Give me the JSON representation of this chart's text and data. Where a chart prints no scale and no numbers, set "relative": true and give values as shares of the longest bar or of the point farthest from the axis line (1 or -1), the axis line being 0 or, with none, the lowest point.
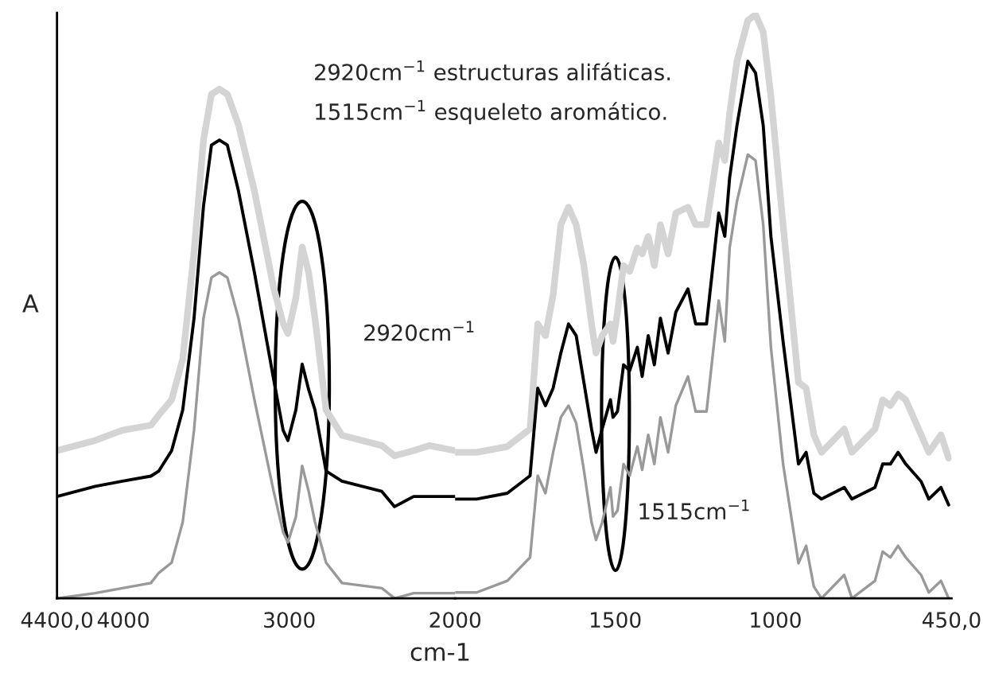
{
  "chart_data": [
    {
      "type": "line",
      "relative": true,
      "ylabel": "A",
      "annotations": [
        "2920cm$^{−1}$ estructuras alifáticas.",
        "1515cm$^{−1}$ esqueleto aromático.",
        "2920cm$^{−1}$"
      ],
      "xlim": [
        4400,
        2000
      ],
      "xticks": [
        {
          "value": 4400,
          "label": "4400,0"
        },
        4000,
        3000,
        2000
      ],
      "x": [
        4400,
        4170,
        4006,
        3834,
        3786,
        3709,
        3642,
        3574,
        3517,
        3469,
        3421,
        3373,
        3306,
        3210,
        3094,
        3037,
        3008,
        2960,
        2922,
        2883,
        2845,
        2778,
        2682,
        2442,
        2365,
        2250,
        2154,
        2000
      ],
      "series": [
        {
          "color": "#d4d4d4",
          "values": [
            0.29,
            0.31,
            0.33,
            0.34,
            0.36,
            0.39,
            0.47,
            0.68,
            0.9,
            0.99,
            1.0,
            0.99,
            0.93,
            0.8,
            0.61,
            0.54,
            0.52,
            0.59,
            0.69,
            0.64,
            0.55,
            0.37,
            0.32,
            0.3,
            0.28,
            0.29,
            0.3,
            0.29
          ]
        },
        {
          "color": "#000000",
          "values": [
            0.2,
            0.22,
            0.23,
            0.24,
            0.25,
            0.29,
            0.37,
            0.55,
            0.77,
            0.89,
            0.9,
            0.89,
            0.8,
            0.64,
            0.43,
            0.33,
            0.31,
            0.37,
            0.46,
            0.41,
            0.37,
            0.25,
            0.23,
            0.21,
            0.18,
            0.2,
            0.2,
            0.2
          ]
        },
        {
          "color": "#999999",
          "values": [
            0.0,
            0.01,
            0.02,
            0.03,
            0.05,
            0.07,
            0.15,
            0.33,
            0.55,
            0.63,
            0.64,
            0.63,
            0.55,
            0.39,
            0.21,
            0.13,
            0.11,
            0.16,
            0.26,
            0.21,
            0.15,
            0.07,
            0.03,
            0.02,
            0.0,
            0.01,
            0.01,
            0.01
          ]
        }
      ]
    },
    {
      "type": "line",
      "relative": true,
      "xlabel": "cm-1",
      "annotations": [
        "1515cm$^{−1}$"
      ],
      "xlim": [
        2000,
        450
      ],
      "xticks": [
        1500,
        1000,
        {
          "value": 450,
          "label": "450,0"
        }
      ],
      "x": [
        2000,
        1933,
        1837,
        1766,
        1742,
        1718,
        1694,
        1670,
        1646,
        1622,
        1598,
        1574,
        1560,
        1541,
        1515,
        1507,
        1493,
        1474,
        1455,
        1431,
        1416,
        1397,
        1378,
        1359,
        1335,
        1311,
        1273,
        1249,
        1215,
        1177,
        1158,
        1143,
        1120,
        1086,
        1062,
        1038,
        1014,
        976,
        928,
        904,
        880,
        856,
        785,
        761,
        689,
        665,
        641,
        617,
        593,
        545,
        521,
        483,
        459
      ],
      "series": [
        {
          "color": "#d4d4d4",
          "values": [
            0.25,
            0.25,
            0.26,
            0.29,
            0.47,
            0.45,
            0.52,
            0.64,
            0.67,
            0.64,
            0.57,
            0.47,
            0.42,
            0.45,
            0.47,
            0.44,
            0.49,
            0.57,
            0.56,
            0.6,
            0.59,
            0.62,
            0.57,
            0.64,
            0.59,
            0.66,
            0.67,
            0.64,
            0.64,
            0.78,
            0.75,
            0.83,
            0.92,
            0.99,
            1.0,
            0.97,
            0.86,
            0.64,
            0.37,
            0.36,
            0.28,
            0.25,
            0.29,
            0.25,
            0.29,
            0.34,
            0.33,
            0.35,
            0.34,
            0.28,
            0.25,
            0.28,
            0.24
          ]
        },
        {
          "color": "#000000",
          "values": [
            0.17,
            0.17,
            0.18,
            0.21,
            0.36,
            0.33,
            0.36,
            0.42,
            0.47,
            0.45,
            0.37,
            0.29,
            0.25,
            0.29,
            0.34,
            0.31,
            0.32,
            0.4,
            0.39,
            0.43,
            0.38,
            0.45,
            0.4,
            0.48,
            0.42,
            0.49,
            0.53,
            0.47,
            0.47,
            0.66,
            0.62,
            0.72,
            0.81,
            0.92,
            0.9,
            0.81,
            0.62,
            0.44,
            0.23,
            0.25,
            0.18,
            0.17,
            0.19,
            0.17,
            0.19,
            0.23,
            0.23,
            0.25,
            0.23,
            0.2,
            0.17,
            0.19,
            0.16
          ]
        },
        {
          "color": "#999999",
          "values": [
            0.01,
            0.01,
            0.03,
            0.07,
            0.21,
            0.18,
            0.25,
            0.31,
            0.33,
            0.3,
            0.22,
            0.13,
            0.1,
            0.13,
            0.19,
            0.14,
            0.15,
            0.23,
            0.21,
            0.26,
            0.22,
            0.28,
            0.23,
            0.31,
            0.25,
            0.33,
            0.38,
            0.32,
            0.32,
            0.51,
            0.44,
            0.6,
            0.68,
            0.76,
            0.75,
            0.64,
            0.43,
            0.23,
            0.06,
            0.09,
            0.02,
            0.0,
            0.04,
            0.0,
            0.03,
            0.08,
            0.07,
            0.09,
            0.07,
            0.04,
            0.01,
            0.03,
            0.0
          ]
        }
      ]
    }
  ]
}
